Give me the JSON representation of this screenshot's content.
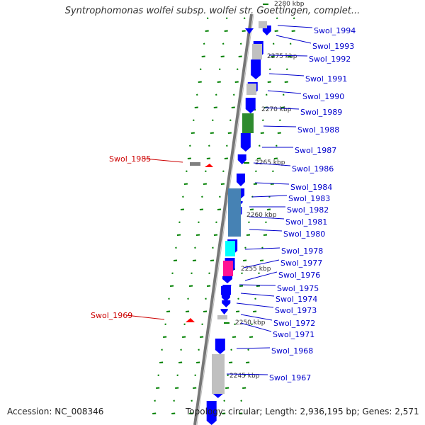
{
  "header": {
    "title": "Syntrophomonas wolfei subsp. wolfei str. Goettingen, complet..."
  },
  "footer": {
    "accession": "Accession: NC_008346",
    "topology": "Topology: circular; Length: 2,936,195 bp; Genes: 2,571"
  },
  "colors": {
    "forward_gene": "#0000ff",
    "other_gene": "#c0c0c0",
    "green_gene": "#2e8b2e",
    "steelblue_gene": "#4682b4",
    "cyan_gene": "#00ffff",
    "magenta_gene": "#ff1493",
    "reverse_gene": "#ff0000",
    "label_blue": "#0000cc",
    "label_red": "#cc0000",
    "ticks": "#008000"
  },
  "ruler": {
    "labels": [
      "2280 kbp",
      "2275 kbp",
      "2270 kbp",
      "2265 kbp",
      "2260 kbp",
      "2255 kbp",
      "2250 kbp",
      "2245 kbp"
    ]
  },
  "genes": {
    "forward": [
      "Swol_1994",
      "Swol_1993",
      "Swol_1992",
      "Swol_1991",
      "Swol_1990",
      "Swol_1989",
      "Swol_1988",
      "Swol_1987",
      "Swol_1986",
      "Swol_1984",
      "Swol_1983",
      "Swol_1982",
      "Swol_1981",
      "Swol_1980",
      "Swol_1978",
      "Swol_1977",
      "Swol_1976",
      "Swol_1975",
      "Swol_1974",
      "Swol_1973",
      "Swol_1972",
      "Swol_1971",
      "Swol_1968",
      "Swol_1967"
    ],
    "reverse": [
      "Swol_1985",
      "Swol_1969"
    ]
  }
}
